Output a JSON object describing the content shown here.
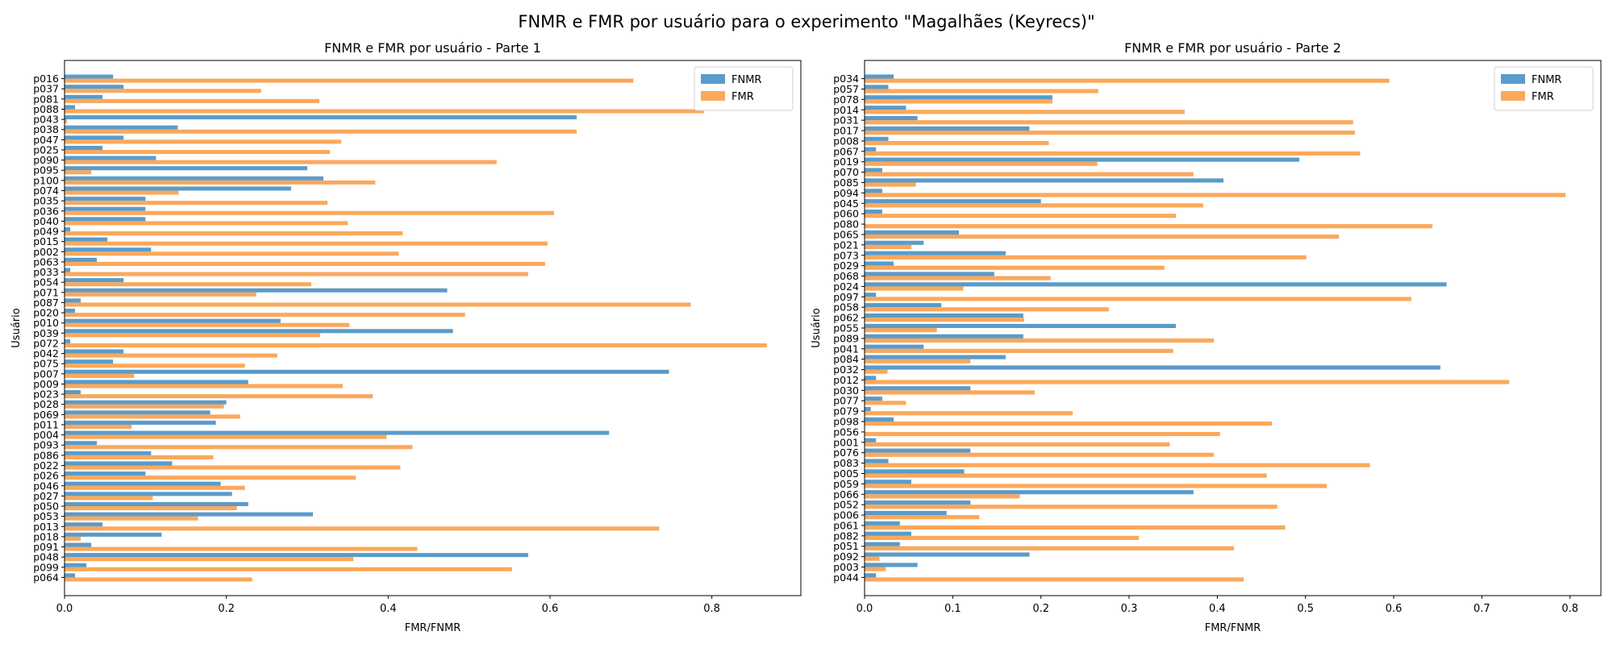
{
  "suptitle": "FNMR e FMR por usuário para o experimento \"Magalhães (Keyrecs)\"",
  "colors": {
    "fnmr": "#5b9bc9",
    "fmr": "#fba85b"
  },
  "chart_data": [
    {
      "type": "bar",
      "orientation": "horizontal",
      "title": "FNMR e FMR por usuário - Parte 1",
      "xlabel": "FMR/FNMR",
      "ylabel": "Usuário",
      "xlim": [
        0,
        0.91
      ],
      "xticks": [
        0.0,
        0.2,
        0.4,
        0.6,
        0.8
      ],
      "xtick_labels": [
        "0.0",
        "0.2",
        "0.4",
        "0.6",
        "0.8"
      ],
      "legend": "top-right",
      "grid": false,
      "categories": [
        "p016",
        "p037",
        "p081",
        "p088",
        "p043",
        "p038",
        "p047",
        "p025",
        "p090",
        "p095",
        "p100",
        "p074",
        "p035",
        "p036",
        "p040",
        "p049",
        "p015",
        "p002",
        "p063",
        "p033",
        "p054",
        "p071",
        "p087",
        "p020",
        "p010",
        "p039",
        "p072",
        "p042",
        "p075",
        "p007",
        "p009",
        "p023",
        "p028",
        "p069",
        "p011",
        "p004",
        "p093",
        "p086",
        "p022",
        "p026",
        "p046",
        "p027",
        "p050",
        "p053",
        "p013",
        "p018",
        "p091",
        "p048",
        "p099",
        "p064"
      ],
      "series": [
        {
          "name": "FNMR",
          "values": [
            0.06,
            0.073,
            0.047,
            0.013,
            0.633,
            0.14,
            0.073,
            0.047,
            0.113,
            0.3,
            0.32,
            0.28,
            0.1,
            0.1,
            0.1,
            0.007,
            0.053,
            0.107,
            0.04,
            0.007,
            0.073,
            0.473,
            0.02,
            0.013,
            0.267,
            0.48,
            0.007,
            0.073,
            0.06,
            0.747,
            0.227,
            0.02,
            0.2,
            0.18,
            0.187,
            0.673,
            0.04,
            0.107,
            0.133,
            0.1,
            0.193,
            0.207,
            0.227,
            0.307,
            0.047,
            0.12,
            0.033,
            0.573,
            0.027,
            0.013
          ]
        },
        {
          "name": "FMR",
          "values": [
            0.703,
            0.243,
            0.315,
            0.79,
            0.003,
            0.633,
            0.342,
            0.328,
            0.534,
            0.033,
            0.384,
            0.141,
            0.325,
            0.605,
            0.35,
            0.418,
            0.597,
            0.413,
            0.594,
            0.573,
            0.305,
            0.237,
            0.774,
            0.495,
            0.352,
            0.316,
            0.868,
            0.263,
            0.223,
            0.086,
            0.344,
            0.381,
            0.197,
            0.217,
            0.083,
            0.398,
            0.43,
            0.184,
            0.415,
            0.36,
            0.223,
            0.109,
            0.213,
            0.165,
            0.735,
            0.02,
            0.436,
            0.357,
            0.553,
            0.232
          ]
        }
      ]
    },
    {
      "type": "bar",
      "orientation": "horizontal",
      "title": "FNMR e FMR por usuário - Parte 2",
      "xlabel": "FMR/FNMR",
      "ylabel": "Usuário",
      "xlim": [
        0,
        0.835
      ],
      "xticks": [
        0.0,
        0.1,
        0.2,
        0.3,
        0.4,
        0.5,
        0.6,
        0.7,
        0.8
      ],
      "xtick_labels": [
        "0.0",
        "0.1",
        "0.2",
        "0.3",
        "0.4",
        "0.5",
        "0.6",
        "0.7",
        "0.8"
      ],
      "legend": "top-right",
      "grid": false,
      "categories": [
        "p034",
        "p057",
        "p078",
        "p014",
        "p031",
        "p017",
        "p008",
        "p067",
        "p019",
        "p070",
        "p085",
        "p094",
        "p045",
        "p060",
        "p080",
        "p065",
        "p021",
        "p073",
        "p029",
        "p068",
        "p024",
        "p097",
        "p058",
        "p062",
        "p055",
        "p089",
        "p041",
        "p084",
        "p032",
        "p012",
        "p030",
        "p077",
        "p079",
        "p098",
        "p056",
        "p001",
        "p076",
        "p083",
        "p005",
        "p059",
        "p066",
        "p052",
        "p006",
        "p061",
        "p082",
        "p051",
        "p092",
        "p003",
        "p044"
      ],
      "series": [
        {
          "name": "FNMR",
          "values": [
            0.033,
            0.027,
            0.213,
            0.047,
            0.06,
            0.187,
            0.027,
            0.013,
            0.493,
            0.02,
            0.407,
            0.02,
            0.2,
            0.02,
            0.0,
            0.107,
            0.067,
            0.16,
            0.033,
            0.147,
            0.66,
            0.013,
            0.087,
            0.18,
            0.353,
            0.18,
            0.067,
            0.16,
            0.653,
            0.013,
            0.12,
            0.02,
            0.007,
            0.033,
            0.0,
            0.013,
            0.12,
            0.027,
            0.113,
            0.053,
            0.373,
            0.12,
            0.093,
            0.04,
            0.053,
            0.04,
            0.187,
            0.06,
            0.013
          ]
        },
        {
          "name": "FMR",
          "values": [
            0.595,
            0.265,
            0.213,
            0.363,
            0.554,
            0.556,
            0.209,
            0.562,
            0.264,
            0.373,
            0.058,
            0.795,
            0.384,
            0.353,
            0.644,
            0.538,
            0.053,
            0.501,
            0.34,
            0.211,
            0.112,
            0.62,
            0.277,
            0.181,
            0.082,
            0.396,
            0.35,
            0.12,
            0.026,
            0.731,
            0.193,
            0.047,
            0.236,
            0.462,
            0.403,
            0.346,
            0.396,
            0.573,
            0.456,
            0.524,
            0.176,
            0.468,
            0.13,
            0.477,
            0.311,
            0.419,
            0.017,
            0.024,
            0.43
          ]
        }
      ]
    }
  ]
}
